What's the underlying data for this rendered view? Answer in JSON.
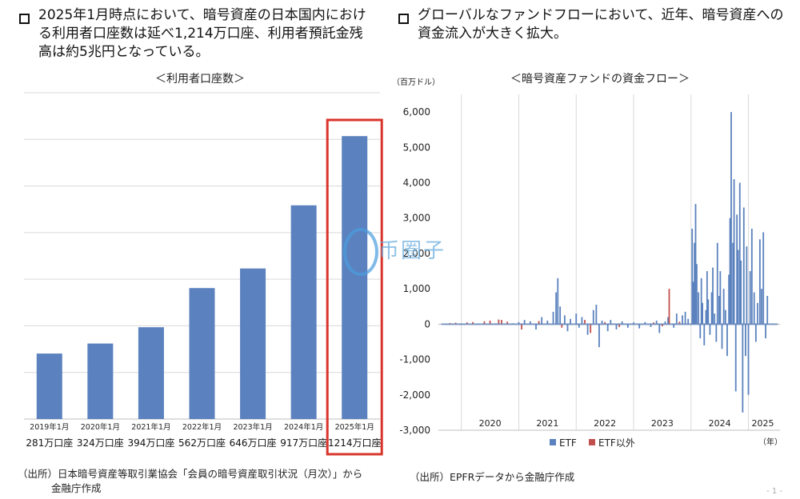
{
  "left": {
    "headline_line1": "2025年1月時点において、暗号資産の日本国内におけ",
    "headline_line2": "る利用者口座数は延べ1,214万口座、利用者預託金残",
    "headline_line3": "高は約5兆円となっている。",
    "source_line1": "（出所）日本暗号資産等取引業協会「会員の暗号資産取引状況（月次）」から",
    "source_line2": "金融庁作成"
  },
  "right": {
    "headline_line1": "グローバルなファンドフローにおいて、近年、暗号資産への",
    "headline_line2": "資金流入が大きく拡大。",
    "source_line1": "（出所）EPFRデータから金融庁作成"
  },
  "page_number": "- 1 -",
  "watermark": "币圈子",
  "colors": {
    "bar": "#5b82be",
    "highlight": "#d9342b",
    "etf_other": "#c0504d",
    "grid": "#d9d9d9"
  },
  "chart_data": [
    {
      "type": "bar",
      "title": "＜利用者口座数＞",
      "categories": [
        "2019年1月",
        "2020年1月",
        "2021年1月",
        "2022年1月",
        "2023年1月",
        "2024年1月",
        "2025年1月"
      ],
      "data_labels": [
        "281万口座",
        "324万口座",
        "394万口座",
        "562万口座",
        "646万口座",
        "917万口座",
        "1214万口座"
      ],
      "values": [
        281,
        324,
        394,
        562,
        646,
        917,
        1214
      ],
      "ylim": [
        0,
        1400
      ],
      "grid": true,
      "highlighted_category": "2025年1月"
    },
    {
      "type": "bar",
      "title": "＜暗号資産ファンドの資金フロー＞",
      "ylabel": "（百万ドル）",
      "xunit": "（年）",
      "ylim": [
        -3000,
        6500
      ],
      "yticks": [
        "6,000",
        "5,000",
        "4,000",
        "3,000",
        "2,000",
        "1,000",
        "0",
        "-1,000",
        "-2,000",
        "-3,000"
      ],
      "ytick_values": [
        6000,
        5000,
        4000,
        3000,
        2000,
        1000,
        0,
        -1000,
        -2000,
        -3000
      ],
      "year_labels": [
        "2020",
        "2021",
        "2022",
        "2023",
        "2024",
        "2025"
      ],
      "year_positions": [
        2020.5,
        2021.5,
        2022.5,
        2023.5,
        2024.5,
        2025.25
      ],
      "x_range": [
        2019.6,
        2025.55
      ],
      "grid": true,
      "legend_placement": "bottom",
      "series": [
        {
          "name": "ETF",
          "points": [
            [
              2020.0,
              5
            ],
            [
              2020.3,
              10
            ],
            [
              2020.6,
              15
            ],
            [
              2020.9,
              20
            ],
            [
              2021.0,
              60
            ],
            [
              2021.1,
              120
            ],
            [
              2021.2,
              80
            ],
            [
              2021.3,
              -150
            ],
            [
              2021.4,
              200
            ],
            [
              2021.5,
              100
            ],
            [
              2021.6,
              350
            ],
            [
              2021.65,
              900
            ],
            [
              2021.68,
              1300
            ],
            [
              2021.72,
              500
            ],
            [
              2021.8,
              250
            ],
            [
              2021.85,
              -200
            ],
            [
              2021.9,
              150
            ],
            [
              2022.0,
              300
            ],
            [
              2022.05,
              -100
            ],
            [
              2022.1,
              200
            ],
            [
              2022.2,
              -300
            ],
            [
              2022.3,
              400
            ],
            [
              2022.35,
              550
            ],
            [
              2022.4,
              -650
            ],
            [
              2022.45,
              100
            ],
            [
              2022.55,
              -200
            ],
            [
              2022.6,
              120
            ],
            [
              2022.7,
              -150
            ],
            [
              2022.8,
              80
            ],
            [
              2022.9,
              -100
            ],
            [
              2023.0,
              50
            ],
            [
              2023.1,
              -120
            ],
            [
              2023.2,
              60
            ],
            [
              2023.3,
              -80
            ],
            [
              2023.4,
              100
            ],
            [
              2023.45,
              -250
            ],
            [
              2023.55,
              80
            ],
            [
              2023.6,
              200
            ],
            [
              2023.7,
              -100
            ],
            [
              2023.75,
              300
            ],
            [
              2023.85,
              250
            ],
            [
              2023.9,
              350
            ],
            [
              2023.95,
              150
            ],
            [
              2024.02,
              2700
            ],
            [
              2024.04,
              1200
            ],
            [
              2024.06,
              2300
            ],
            [
              2024.08,
              3400
            ],
            [
              2024.1,
              1700
            ],
            [
              2024.13,
              900
            ],
            [
              2024.16,
              -400
            ],
            [
              2024.18,
              1300
            ],
            [
              2024.2,
              600
            ],
            [
              2024.23,
              -600
            ],
            [
              2024.26,
              400
            ],
            [
              2024.28,
              1500
            ],
            [
              2024.3,
              700
            ],
            [
              2024.33,
              -300
            ],
            [
              2024.36,
              900
            ],
            [
              2024.38,
              1600
            ],
            [
              2024.41,
              300
            ],
            [
              2024.44,
              -500
            ],
            [
              2024.46,
              2300
            ],
            [
              2024.49,
              800
            ],
            [
              2024.51,
              1500
            ],
            [
              2024.54,
              -700
            ],
            [
              2024.57,
              1000
            ],
            [
              2024.6,
              400
            ],
            [
              2024.63,
              -900
            ],
            [
              2024.66,
              1400
            ],
            [
              2024.68,
              3000
            ],
            [
              2024.7,
              6000
            ],
            [
              2024.73,
              2300
            ],
            [
              2024.75,
              4100
            ],
            [
              2024.78,
              -1900
            ],
            [
              2024.8,
              3100
            ],
            [
              2024.82,
              2100
            ],
            [
              2024.85,
              4000
            ],
            [
              2024.87,
              1800
            ],
            [
              2024.9,
              -2500
            ],
            [
              2024.92,
              3300
            ],
            [
              2024.95,
              -900
            ],
            [
              2024.97,
              2200
            ],
            [
              2025.0,
              -2000
            ],
            [
              2025.03,
              1500
            ],
            [
              2025.06,
              2700
            ],
            [
              2025.1,
              900
            ],
            [
              2025.13,
              -500
            ],
            [
              2025.16,
              600
            ],
            [
              2025.2,
              2400
            ],
            [
              2025.23,
              1000
            ],
            [
              2025.26,
              2600
            ],
            [
              2025.3,
              -400
            ],
            [
              2025.33,
              800
            ]
          ]
        },
        {
          "name": "ETF以外",
          "points": [
            [
              2019.8,
              30
            ],
            [
              2019.9,
              40
            ],
            [
              2020.1,
              50
            ],
            [
              2020.2,
              60
            ],
            [
              2020.4,
              80
            ],
            [
              2020.5,
              100
            ],
            [
              2020.65,
              130
            ],
            [
              2020.7,
              120
            ],
            [
              2020.8,
              70
            ],
            [
              2021.05,
              -150
            ],
            [
              2021.35,
              90
            ],
            [
              2021.75,
              -100
            ],
            [
              2022.15,
              120
            ],
            [
              2022.25,
              -250
            ],
            [
              2022.5,
              60
            ],
            [
              2022.75,
              -80
            ],
            [
              2023.35,
              50
            ],
            [
              2023.5,
              -60
            ],
            [
              2023.62,
              1000
            ],
            [
              2023.8,
              70
            ]
          ]
        }
      ]
    }
  ]
}
